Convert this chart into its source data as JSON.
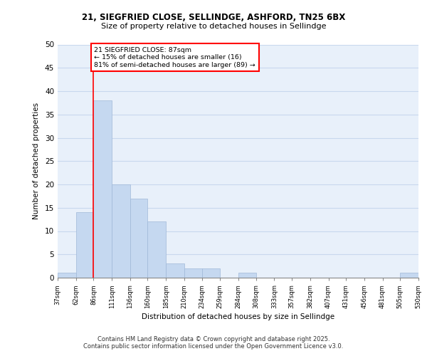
{
  "title_line1": "21, SIEGFRIED CLOSE, SELLINDGE, ASHFORD, TN25 6BX",
  "title_line2": "Size of property relative to detached houses in Sellindge",
  "xlabel": "Distribution of detached houses by size in Sellindge",
  "ylabel": "Number of detached properties",
  "bin_edges": [
    37,
    62,
    86,
    111,
    136,
    160,
    185,
    210,
    234,
    259,
    284,
    308,
    333,
    357,
    382,
    407,
    431,
    456,
    481,
    505,
    530
  ],
  "bin_counts": [
    1,
    14,
    38,
    20,
    17,
    12,
    3,
    2,
    2,
    0,
    1,
    0,
    0,
    0,
    0,
    0,
    0,
    0,
    0,
    1
  ],
  "bar_color": "#c5d8f0",
  "property_line_x": 86,
  "annotation_text": "21 SIEGFRIED CLOSE: 87sqm\n← 15% of detached houses are smaller (16)\n81% of semi-detached houses are larger (89) →",
  "annotation_box_color": "white",
  "annotation_box_edge_color": "red",
  "property_line_color": "red",
  "ylim": [
    0,
    50
  ],
  "xlim": [
    37,
    530
  ],
  "grid_color": "#c8d8ee",
  "background_color": "#e8f0fa",
  "footer_line1": "Contains HM Land Registry data © Crown copyright and database right 2025.",
  "footer_line2": "Contains public sector information licensed under the Open Government Licence v3.0."
}
